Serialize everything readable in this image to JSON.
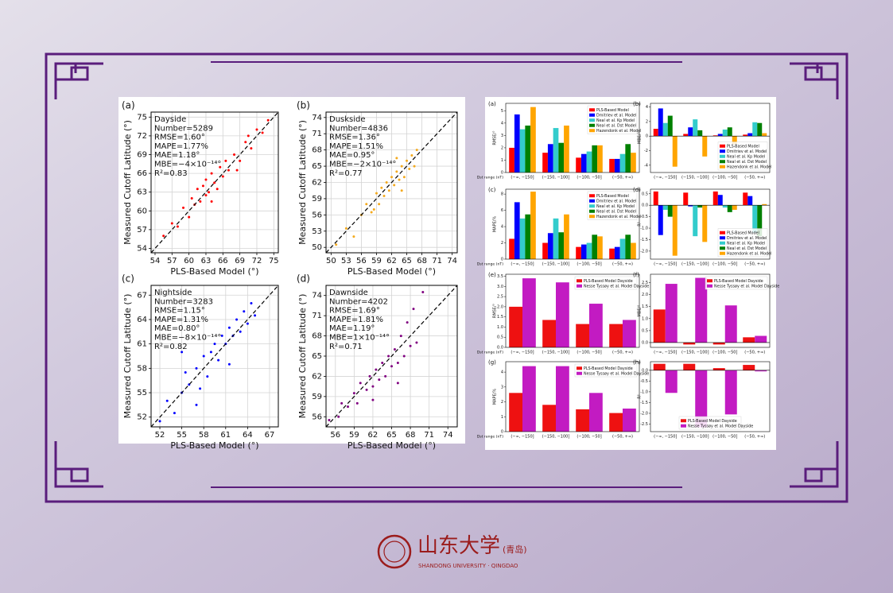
{
  "chart_data": [
    {
      "type": "scatter",
      "label": "(a)",
      "color": "#ff0000",
      "xlabel": "PLS-Based Model (°)",
      "ylabel": "Measured Cutoff Latitude (°)",
      "annotations": [
        "Dayside",
        "Number=5289",
        "RMSE=1.60°",
        "MAPE=1.77%",
        "MAE=1.18°",
        "MBE=−4×10⁻¹⁴°",
        "R²=0.83"
      ],
      "xlim": [
        53.3,
        75.8
      ],
      "ylim": [
        53.3,
        75.8
      ],
      "xticks": [
        54,
        57,
        60,
        63,
        66,
        69,
        72,
        75
      ],
      "yticks": [
        54,
        57,
        60,
        63,
        66,
        69,
        72,
        75
      ],
      "grid": true,
      "x": [
        55.5,
        57,
        58,
        59,
        60,
        60.5,
        61,
        61.5,
        62,
        62.5,
        63,
        63,
        63.5,
        64,
        64.5,
        65,
        65.5,
        66,
        66.5,
        67,
        68,
        69,
        70,
        71,
        72,
        73,
        74,
        68.5,
        64,
        70.5
      ],
      "y": [
        56,
        58,
        57.5,
        60.5,
        59,
        62,
        61,
        63.5,
        61.5,
        64,
        62.5,
        65,
        63,
        66,
        64.5,
        63.5,
        67,
        65.5,
        68,
        66.5,
        69,
        68,
        71,
        70,
        73,
        72.5,
        74.5,
        66.5,
        61.5,
        72
      ]
    },
    {
      "type": "scatter",
      "label": "(b)",
      "color": "#f4aa1e",
      "xlabel": "PLS-Based Model (°)",
      "ylabel": "Measured Cutoff Latitude (°)",
      "annotations": [
        "Duskside",
        "Number=4836",
        "RMSE=1.36°",
        "MAPE=1.51%",
        "MAE=0.95°",
        "MBE=−2×10⁻¹⁴°",
        "R²=0.77"
      ],
      "xlim": [
        49,
        75
      ],
      "ylim": [
        49,
        75
      ],
      "xticks": [
        50,
        53,
        56,
        59,
        62,
        65,
        68,
        71,
        74
      ],
      "yticks": [
        50,
        53,
        56,
        59,
        62,
        65,
        68,
        71,
        74
      ],
      "grid": true,
      "x": [
        51,
        53,
        54.5,
        56,
        57,
        58,
        59,
        59.5,
        60,
        60.5,
        61,
        61.5,
        62,
        62.5,
        63,
        63.5,
        64,
        64.5,
        65,
        65.5,
        66,
        66.5,
        67,
        58.5,
        63,
        64
      ],
      "y": [
        50.5,
        53.5,
        52,
        56,
        58,
        56.5,
        60,
        58,
        61,
        59.5,
        62,
        60.5,
        63,
        61.5,
        64,
        62.5,
        65,
        63,
        66,
        64.5,
        67,
        65,
        68,
        57,
        66.5,
        60.5
      ]
    },
    {
      "type": "scatter",
      "label": "(c)",
      "color": "#0000ff",
      "xlabel": "PLS-Based Model (°)",
      "ylabel": "Measured Cutoff Latitude (°)",
      "annotations": [
        "Nightside",
        "Number=3283",
        "RMSE=1.15°",
        "MAPE=1.31%",
        "MAE=0.80°",
        "MBE=−8×10⁻¹⁴°",
        "R²=0.82"
      ],
      "xlim": [
        50.8,
        68.2
      ],
      "ylim": [
        50.8,
        68.2
      ],
      "xticks": [
        52,
        55,
        58,
        61,
        64,
        67
      ],
      "yticks": [
        52,
        55,
        58,
        61,
        64,
        67
      ],
      "grid": true,
      "x": [
        52,
        53,
        54,
        55,
        55.5,
        56,
        57,
        57.5,
        58,
        58.5,
        59,
        59.5,
        60,
        60.5,
        61,
        61.5,
        62,
        62.5,
        63,
        63.5,
        64,
        64.5,
        65,
        55,
        57,
        61.5
      ],
      "y": [
        51.5,
        54,
        52.5,
        55,
        57.5,
        56,
        58,
        55.5,
        59.5,
        57,
        60,
        61,
        59,
        62,
        61,
        63,
        62,
        64,
        62.5,
        65,
        63.5,
        66,
        64.5,
        60,
        53.5,
        58.5
      ]
    },
    {
      "type": "scatter",
      "label": "(d)",
      "color": "#800080",
      "xlabel": "PLS-Based Model (°)",
      "ylabel": "Measured Cutoff Latitude (°)",
      "annotations": [
        "Dawnside",
        "Number=4202",
        "RMSE=1.69°",
        "MAPE=1.81%",
        "MAE=1.19°",
        "MBE=1×10⁻¹⁴°",
        "R²=0.71"
      ],
      "xlim": [
        54.5,
        75.5
      ],
      "ylim": [
        54.5,
        75.5
      ],
      "xticks": [
        56,
        59,
        62,
        65,
        68,
        71,
        74
      ],
      "yticks": [
        56,
        59,
        62,
        65,
        68,
        71,
        74
      ],
      "grid": true,
      "x": [
        55,
        56.5,
        57,
        58,
        59,
        59.5,
        60,
        61,
        61.5,
        62,
        62.5,
        63,
        63.5,
        64,
        64.5,
        65,
        65.5,
        66,
        66.5,
        67,
        67.5,
        68,
        68.5,
        69,
        70,
        62,
        66
      ],
      "y": [
        55.5,
        56,
        58,
        57.5,
        59.5,
        58,
        61,
        60,
        62,
        60.5,
        63,
        61.5,
        64,
        62,
        65,
        63.5,
        66,
        64,
        68,
        65,
        70,
        66.5,
        72,
        67,
        74.5,
        58.5,
        61
      ]
    },
    {
      "type": "bar",
      "label": "(a)",
      "ylabel": "RMSE/°",
      "xlabel": "Dst range (nT)",
      "legend": "upper right",
      "categories": [
        "(−∞, −150]",
        "(−150, −100]",
        "(−100, −50]",
        "(−50, +∞)"
      ],
      "ylim": [
        0,
        5.6
      ],
      "yticks": [
        0,
        1,
        2,
        3,
        4,
        5
      ],
      "series": [
        {
          "name": "PLS-Based Model",
          "color": "#ff0000",
          "values": [
            2.0,
            1.6,
            1.2,
            1.1
          ]
        },
        {
          "name": "Dmitriev et al. Model",
          "color": "#0000ff",
          "values": [
            4.7,
            2.3,
            1.5,
            1.1
          ]
        },
        {
          "name": "Neal et al. Kp Model",
          "color": "#33cccc",
          "values": [
            3.5,
            3.6,
            1.7,
            1.5
          ]
        },
        {
          "name": "Neal et al. Dst Model",
          "color": "#008000",
          "values": [
            3.8,
            2.4,
            2.2,
            2.3
          ]
        },
        {
          "name": "Hazendonk et al. Model",
          "color": "#ffa500",
          "values": [
            5.3,
            3.8,
            2.2,
            1.6
          ]
        }
      ]
    },
    {
      "type": "bar",
      "label": "(b)",
      "ylabel": "MBE/°",
      "legend": "lower right",
      "categories": [
        "(−∞, −150]",
        "(−150, −100]",
        "(−100, −50]",
        "(−50, +∞)"
      ],
      "ylim": [
        -5,
        4.5
      ],
      "yticks": [
        -4,
        -2,
        0,
        2,
        4
      ],
      "series": [
        {
          "name": "PLS-Based Model",
          "color": "#ff0000",
          "values": [
            1.0,
            0.3,
            0.1,
            0.2
          ]
        },
        {
          "name": "Dmitriev et al. Model",
          "color": "#0000ff",
          "values": [
            3.8,
            1.2,
            0.3,
            0.4
          ]
        },
        {
          "name": "Neal et al. Kp Model",
          "color": "#33cccc",
          "values": [
            1.8,
            2.3,
            0.9,
            1.9
          ]
        },
        {
          "name": "Neal et al. Dst Model",
          "color": "#008000",
          "values": [
            2.8,
            0.8,
            1.2,
            1.8
          ]
        },
        {
          "name": "Hazendonk et al. Model",
          "color": "#ffa500",
          "values": [
            -4.2,
            -2.8,
            -1.1,
            0.4
          ]
        }
      ]
    },
    {
      "type": "bar",
      "label": "(c)",
      "ylabel": "MAPE/%",
      "xlabel": "Dst range (nT)",
      "legend": "upper right",
      "categories": [
        "(−∞, −150]",
        "(−150, −100]",
        "(−100, −50]",
        "(−50, +∞)"
      ],
      "ylim": [
        0,
        8.6
      ],
      "yticks": [
        0,
        2,
        4,
        6,
        8
      ],
      "series": [
        {
          "name": "PLS-Based Model",
          "color": "#ff0000",
          "values": [
            2.5,
            2.0,
            1.5,
            1.3
          ]
        },
        {
          "name": "Dmitriev et al. Model",
          "color": "#0000ff",
          "values": [
            7.0,
            3.2,
            1.8,
            1.5
          ]
        },
        {
          "name": "Neal et al. Kp Model",
          "color": "#33cccc",
          "values": [
            5.0,
            5.0,
            2.0,
            2.5
          ]
        },
        {
          "name": "Neal et al. Dst Model",
          "color": "#008000",
          "values": [
            5.5,
            3.3,
            3.0,
            3.0
          ]
        },
        {
          "name": "Hazendonk et al. Model",
          "color": "#ffa500",
          "values": [
            8.3,
            5.5,
            2.8,
            2.0
          ]
        }
      ]
    },
    {
      "type": "bar",
      "label": "(d)",
      "ylabel": "R²",
      "legend": "lower right",
      "categories": [
        "(−∞, −150]",
        "(−150, −100]",
        "(−100, −50]",
        "(−50, +∞)"
      ],
      "ylim": [
        -2.35,
        0.7
      ],
      "yticks": [
        {
          "value": -2,
          "label": "-2.0"
        },
        {
          "value": -1.5,
          "label": "-1.5"
        },
        {
          "value": -1,
          "label": "-1.0"
        },
        {
          "value": -0.5,
          "label": "-0.5"
        },
        {
          "value": 0,
          "label": "0.0"
        },
        0.5
      ],
      "series": [
        {
          "name": "PLS-Based Model",
          "color": "#ff0000",
          "values": [
            0.6,
            0.55,
            0.6,
            0.55
          ]
        },
        {
          "name": "Dmitriev et al. Model",
          "color": "#0000ff",
          "values": [
            -1.3,
            -0.05,
            0.45,
            0.4
          ]
        },
        {
          "name": "Neal et al. Kp Model",
          "color": "#33cccc",
          "values": [
            -0.2,
            -1.35,
            -0.1,
            -1.2
          ]
        },
        {
          "name": "Neal et al. Dst Model",
          "color": "#008000",
          "values": [
            -0.5,
            -0.1,
            -0.3,
            -1.35
          ]
        },
        {
          "name": "Hazendonk et al. Model",
          "color": "#ffa500",
          "values": [
            -2.2,
            -1.6,
            -0.2,
            0.05
          ]
        }
      ]
    },
    {
      "type": "bar",
      "label": "(e)",
      "ylabel": "RMSE/°",
      "xlabel": "Dst range (nT)",
      "legend": "upper right",
      "categories": [
        "(−∞, −150]",
        "(−150, −100]",
        "(−100, −50]",
        "(−50, +∞)"
      ],
      "ylim": [
        0,
        3.6
      ],
      "yticks": [
        {
          "value": 0,
          "label": "0.0"
        },
        0.5,
        {
          "value": 1,
          "label": "1.0"
        },
        1.5,
        {
          "value": 2,
          "label": "2.0"
        },
        2.5,
        {
          "value": 3,
          "label": "3.0"
        },
        3.5
      ],
      "series": [
        {
          "name": "PLS-Based Model Dayside",
          "color": "#ee1111",
          "values": [
            2.0,
            1.35,
            1.15,
            1.15
          ]
        },
        {
          "name": "Nesse Tyssøy et al. Model Dayside",
          "color": "#c21bc2",
          "values": [
            3.4,
            3.2,
            2.15,
            1.35
          ]
        }
      ]
    },
    {
      "type": "bar",
      "label": "(f)",
      "ylabel": "MBE/°",
      "legend": "upper right",
      "categories": [
        "(−∞, −150]",
        "(−150, −100]",
        "(−100, −50]",
        "(−50, +∞)"
      ],
      "ylim": [
        -0.2,
        2.85
      ],
      "yticks": [
        {
          "value": 0,
          "label": "0.0"
        },
        0.5,
        {
          "value": 1,
          "label": "1.0"
        },
        1.5,
        {
          "value": 2,
          "label": "2.0"
        },
        2.5
      ],
      "series": [
        {
          "name": "PLS-Based Model Dayside",
          "color": "#ee1111",
          "values": [
            1.38,
            -0.08,
            -0.08,
            0.22
          ]
        },
        {
          "name": "Nesse Tyssøy et al. Model Dayside",
          "color": "#c21bc2",
          "values": [
            2.45,
            2.7,
            1.55,
            0.28
          ]
        }
      ]
    },
    {
      "type": "bar",
      "label": "(g)",
      "ylabel": "MAPE/%",
      "xlabel": "Dst range (nT)",
      "legend": "upper right",
      "categories": [
        "(−∞, −150]",
        "(−150, −100]",
        "(−100, −50]",
        "(−50, +∞)"
      ],
      "ylim": [
        0,
        4.7
      ],
      "yticks": [
        0,
        1,
        2,
        3,
        4
      ],
      "series": [
        {
          "name": "PLS-Based Model Dayside",
          "color": "#ee1111",
          "values": [
            2.6,
            1.8,
            1.5,
            1.25
          ]
        },
        {
          "name": "Nesse Tyssøy et al. Model Dayside",
          "color": "#c21bc2",
          "values": [
            4.4,
            4.4,
            2.6,
            1.55
          ]
        }
      ]
    },
    {
      "type": "bar",
      "label": "(h)",
      "ylabel": "R²",
      "legend": "lower center",
      "categories": [
        "(−∞, −150]",
        "(−150, −100]",
        "(−100, −50]",
        "(−50, +∞)"
      ],
      "ylim": [
        -2.85,
        0.4
      ],
      "yticks": [
        {
          "value": -2.5,
          "label": "-2.5"
        },
        {
          "value": -2,
          "label": "-2.0"
        },
        {
          "value": -1.5,
          "label": "-1.5"
        },
        {
          "value": -1,
          "label": "-1.0"
        },
        {
          "value": -0.5,
          "label": "-0.5"
        },
        {
          "value": 0,
          "label": "0.0"
        }
      ],
      "series": [
        {
          "name": "PLS-Based Model Dayside",
          "color": "#ee1111",
          "values": [
            0.3,
            0.3,
            0.1,
            0.25
          ]
        },
        {
          "name": "Nesse Tyssøy et al. Model Dayside",
          "color": "#c21bc2",
          "values": [
            -1.05,
            -2.65,
            -2.05,
            -0.05
          ]
        }
      ]
    }
  ],
  "footer": {
    "name": "山东大学",
    "campus": "(青岛)",
    "english": "SHANDONG UNIVERSITY · QINGDAO"
  }
}
